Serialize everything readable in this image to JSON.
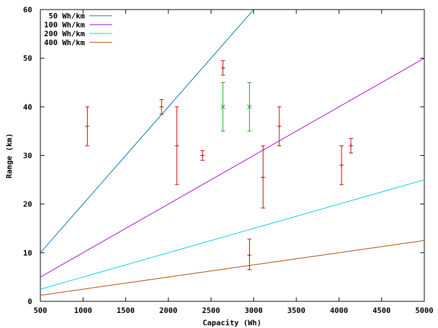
{
  "chart_data": {
    "type": "line",
    "title": "",
    "xlabel": "Capacity (Wh)",
    "ylabel": "Range (km)",
    "xlim": [
      500,
      5000
    ],
    "ylim": [
      0,
      60
    ],
    "xticks": [
      500,
      1000,
      1500,
      2000,
      2500,
      3000,
      3500,
      4000,
      4500,
      5000
    ],
    "yticks": [
      0,
      10,
      20,
      30,
      40,
      50,
      60
    ],
    "grid": false,
    "legend_position": "top-left",
    "series": [
      {
        "name": "50 Wh/km",
        "kind": "line",
        "wh_per_km": 50,
        "color": "#0072b2",
        "x": [
          500,
          5000
        ],
        "y": [
          10,
          100
        ]
      },
      {
        "name": "100 Wh/km",
        "kind": "line",
        "wh_per_km": 100,
        "color": "#a000d0",
        "x": [
          500,
          5000
        ],
        "y": [
          5,
          50
        ]
      },
      {
        "name": "200 Wh/km",
        "kind": "line",
        "wh_per_km": 200,
        "color": "#00d0e0",
        "x": [
          500,
          5000
        ],
        "y": [
          2.5,
          25
        ]
      },
      {
        "name": "400 Wh/km",
        "kind": "line",
        "wh_per_km": 400,
        "color": "#b04000",
        "x": [
          500,
          5000
        ],
        "y": [
          1.25,
          12.5
        ]
      },
      {
        "name": "",
        "kind": "errorbars",
        "marker": "+",
        "color": "#cc0000",
        "points": [
          {
            "x": 1050,
            "y": 36,
            "low": 32,
            "high": 40
          },
          {
            "x": 1920,
            "y": 40,
            "low": 38.5,
            "high": 41.5
          },
          {
            "x": 2100,
            "y": 32,
            "low": 24,
            "high": 40
          },
          {
            "x": 2400,
            "y": 30,
            "low": 29,
            "high": 31
          },
          {
            "x": 2640,
            "y": 48,
            "low": 46.5,
            "high": 49.5
          },
          {
            "x": 2950,
            "y": 9.5,
            "low": 6.5,
            "high": 12.8
          },
          {
            "x": 3110,
            "y": 25.5,
            "low": 19.2,
            "high": 32
          },
          {
            "x": 3300,
            "y": 36,
            "low": 32,
            "high": 40
          },
          {
            "x": 4030,
            "y": 28,
            "low": 24,
            "high": 32
          },
          {
            "x": 4140,
            "y": 32,
            "low": 30.5,
            "high": 33.5
          }
        ]
      },
      {
        "name": "",
        "kind": "errorbars",
        "marker": "x",
        "color": "#00b000",
        "points": [
          {
            "x": 2640,
            "y": 40,
            "low": 35,
            "high": 45
          },
          {
            "x": 2950,
            "y": 40,
            "low": 35,
            "high": 45
          }
        ]
      }
    ]
  }
}
